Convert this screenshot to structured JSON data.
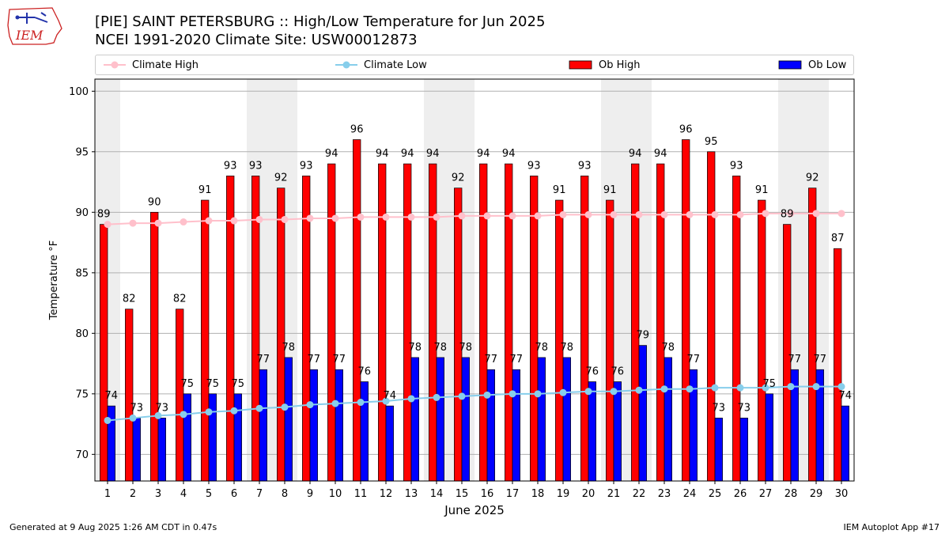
{
  "header": {
    "title_line1": "[PIE] SAINT PETERSBURG :: High/Low Temperature for Jun 2025",
    "title_line2": "NCEI 1991-2020 Climate Site: USW00012873"
  },
  "logo": {
    "text": "IEM"
  },
  "footer": {
    "left": "Generated at 9 Aug 2025 1:26 AM CDT in 0.47s",
    "right": "IEM Autoplot App #17"
  },
  "legend": {
    "placement": "top",
    "items": [
      {
        "label": "Climate High",
        "kind": "line",
        "color": "#ffc0cb"
      },
      {
        "label": "Climate Low",
        "kind": "line",
        "color": "#87ceeb"
      },
      {
        "label": "Ob High",
        "kind": "bar",
        "color": "#ff0000"
      },
      {
        "label": "Ob Low",
        "kind": "bar",
        "color": "#0000ff"
      }
    ]
  },
  "chart_data": {
    "type": "bar",
    "title": "[PIE] SAINT PETERSBURG :: High/Low Temperature for Jun 2025",
    "subtitle": "NCEI 1991-2020 Climate Site: USW00012873",
    "xlabel": "June 2025",
    "ylabel": "Temperature °F",
    "ylim": [
      67.8,
      101
    ],
    "yticks": [
      70,
      75,
      80,
      85,
      90,
      95,
      100
    ],
    "grid": true,
    "categories": [
      "1",
      "2",
      "3",
      "4",
      "5",
      "6",
      "7",
      "8",
      "9",
      "10",
      "11",
      "12",
      "13",
      "14",
      "15",
      "16",
      "17",
      "18",
      "19",
      "20",
      "21",
      "22",
      "23",
      "24",
      "25",
      "26",
      "27",
      "28",
      "29",
      "30"
    ],
    "weekend_days": [
      1,
      7,
      8,
      14,
      15,
      21,
      22,
      28,
      29
    ],
    "weekend_color": "#eeeeee",
    "series": [
      {
        "name": "Ob High",
        "kind": "bar",
        "color": "#ff0000",
        "values": [
          89,
          82,
          90,
          82,
          91,
          93,
          93,
          92,
          93,
          94,
          96,
          94,
          94,
          94,
          92,
          94,
          94,
          93,
          91,
          93,
          91,
          94,
          94,
          96,
          95,
          93,
          91,
          89,
          92,
          87
        ]
      },
      {
        "name": "Ob Low",
        "kind": "bar",
        "color": "#0000ff",
        "values": [
          74,
          73,
          73,
          75,
          75,
          75,
          77,
          78,
          77,
          77,
          76,
          74,
          78,
          78,
          78,
          77,
          77,
          78,
          78,
          76,
          76,
          79,
          78,
          77,
          73,
          73,
          75,
          77,
          77,
          74
        ]
      },
      {
        "name": "Climate High",
        "kind": "line",
        "color": "#ffc0cb",
        "values": [
          89.0,
          89.1,
          89.1,
          89.2,
          89.3,
          89.3,
          89.4,
          89.4,
          89.5,
          89.5,
          89.6,
          89.6,
          89.6,
          89.6,
          89.7,
          89.7,
          89.7,
          89.7,
          89.8,
          89.8,
          89.8,
          89.8,
          89.8,
          89.8,
          89.8,
          89.8,
          89.9,
          89.9,
          89.9,
          89.9
        ]
      },
      {
        "name": "Climate Low",
        "kind": "line",
        "color": "#87ceeb",
        "values": [
          72.8,
          73.0,
          73.2,
          73.3,
          73.5,
          73.6,
          73.8,
          73.9,
          74.1,
          74.2,
          74.3,
          74.4,
          74.6,
          74.7,
          74.8,
          74.9,
          75.0,
          75.0,
          75.1,
          75.2,
          75.2,
          75.3,
          75.4,
          75.4,
          75.5,
          75.5,
          75.5,
          75.6,
          75.6,
          75.6
        ]
      }
    ]
  }
}
